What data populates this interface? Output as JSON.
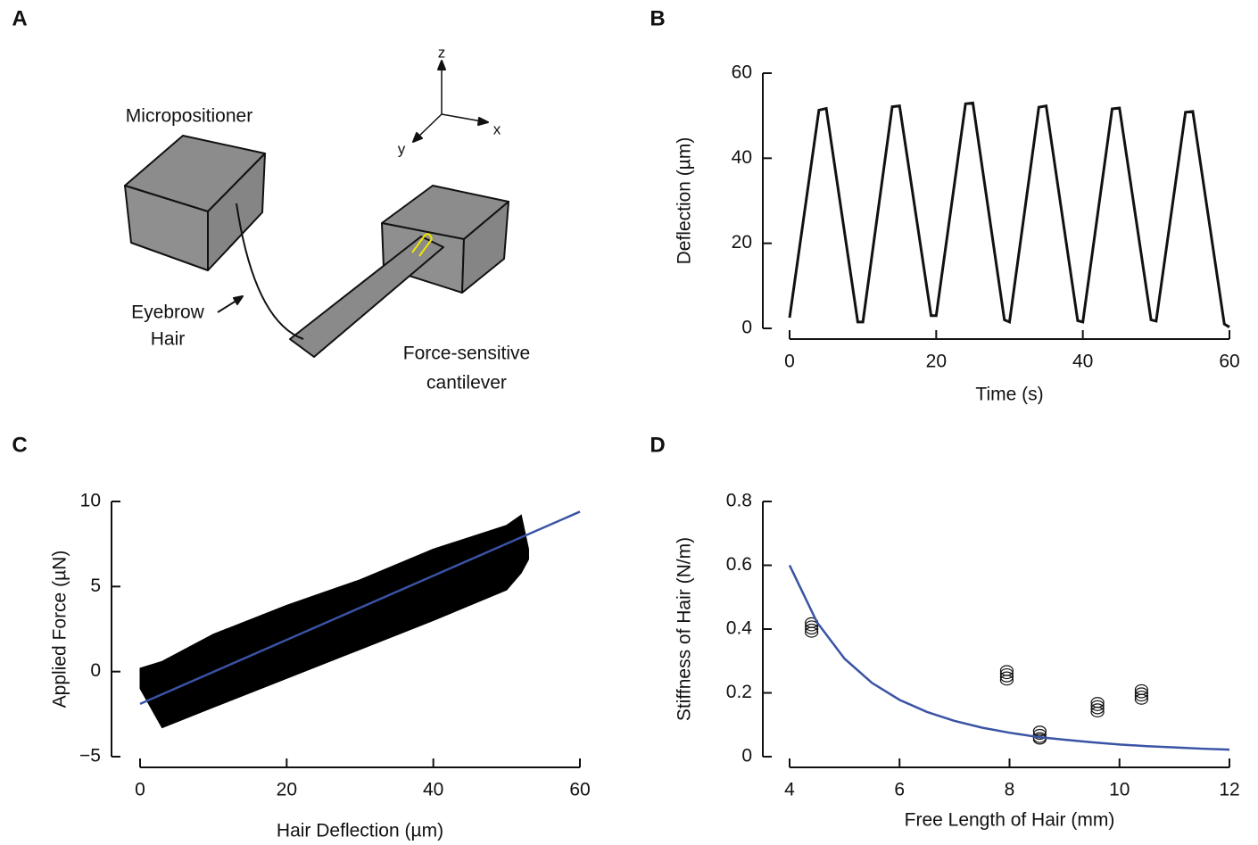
{
  "panel_labels": [
    "A",
    "B",
    "C",
    "D"
  ],
  "diagram": {
    "micropositioner": "Micropositioner",
    "eyebrow_hair": [
      "Eyebrow",
      "Hair"
    ],
    "cantilever": [
      "Force-sensitive",
      "cantilever"
    ],
    "axes": [
      "z",
      "x",
      "y"
    ]
  },
  "chart_data": [
    {
      "type": "line",
      "xlabel": "Time (s)",
      "ylabel": "Deflection (µm)",
      "series": [
        {
          "kind": "line",
          "color": "#111111",
          "x": [
            0,
            4,
            5,
            9.3,
            10,
            14,
            15,
            19.3,
            20,
            24,
            25,
            29.3,
            30,
            34,
            35,
            39.3,
            40,
            44,
            45,
            49.3,
            50,
            54,
            55,
            59.3,
            60
          ],
          "values": [
            2.5,
            51.3,
            51.7,
            1.5,
            1.5,
            52.1,
            52.3,
            3,
            3,
            52.8,
            53,
            2,
            1.5,
            52,
            52.3,
            1.8,
            1.5,
            51.6,
            51.8,
            2,
            1.7,
            50.8,
            51,
            1,
            0.3
          ]
        }
      ],
      "xlim": [
        0,
        60
      ],
      "ylim": [
        0,
        60
      ],
      "xticks": [
        0,
        20,
        40,
        60
      ],
      "yticks": [
        0,
        20,
        40,
        60
      ]
    },
    {
      "type": "line",
      "xlabel": "Hair Deflection (µm)",
      "ylabel": "Applied Force (µN)",
      "series": [
        {
          "kind": "band",
          "color": "#000000",
          "x": [
            0,
            3,
            10,
            20,
            30,
            40,
            50,
            52,
            53
          ],
          "upper": [
            0.2,
            0.6,
            2.2,
            3.9,
            5.4,
            7.2,
            8.6,
            9.2,
            7.2
          ],
          "lower": [
            -1,
            -3.3,
            -2.1,
            -0.4,
            1.3,
            3,
            4.8,
            5.8,
            6.6
          ]
        },
        {
          "kind": "line",
          "color": "#3a53a4",
          "x": [
            0,
            60
          ],
          "values": [
            -1.9,
            9.4
          ]
        }
      ],
      "xlim": [
        0,
        60
      ],
      "ylim": [
        -5,
        10
      ],
      "xticks": [
        0,
        20,
        40,
        60
      ],
      "yticks": [
        {
          "value": -5,
          "label": "−5"
        },
        0,
        5,
        10
      ]
    },
    {
      "type": "line",
      "xlabel": "Free Length of Hair (mm)",
      "ylabel": "Stiffness of Hair (N/m)",
      "series": [
        {
          "kind": "scatter",
          "color": "#111111",
          "x": [
            4.4,
            4.4,
            4.4,
            4.4,
            7.95,
            7.95,
            7.95,
            7.95,
            8.55,
            8.55,
            8.55,
            8.55,
            9.6,
            9.6,
            9.6,
            9.6,
            10.4,
            10.4,
            10.4,
            10.4
          ],
          "values": [
            0.39,
            0.4,
            0.41,
            0.42,
            0.24,
            0.25,
            0.26,
            0.27,
            0.055,
            0.06,
            0.07,
            0.08,
            0.14,
            0.15,
            0.16,
            0.17,
            0.18,
            0.19,
            0.2,
            0.21
          ]
        },
        {
          "kind": "line",
          "color": "#3a53a4",
          "x": [
            4,
            4.5,
            5,
            5.5,
            6,
            6.5,
            7,
            7.5,
            8,
            8.5,
            9,
            9.5,
            10,
            10.5,
            11,
            11.5,
            12
          ],
          "values": [
            0.6,
            0.421,
            0.307,
            0.231,
            0.178,
            0.14,
            0.112,
            0.091,
            0.075,
            0.062,
            0.053,
            0.045,
            0.038,
            0.033,
            0.029,
            0.025,
            0.022
          ]
        }
      ],
      "xlim": [
        4,
        12
      ],
      "ylim": [
        0,
        0.8
      ],
      "xticks": [
        4,
        6,
        8,
        10,
        12
      ],
      "yticks": [
        0,
        0.2,
        0.4,
        0.6,
        0.8
      ]
    }
  ]
}
